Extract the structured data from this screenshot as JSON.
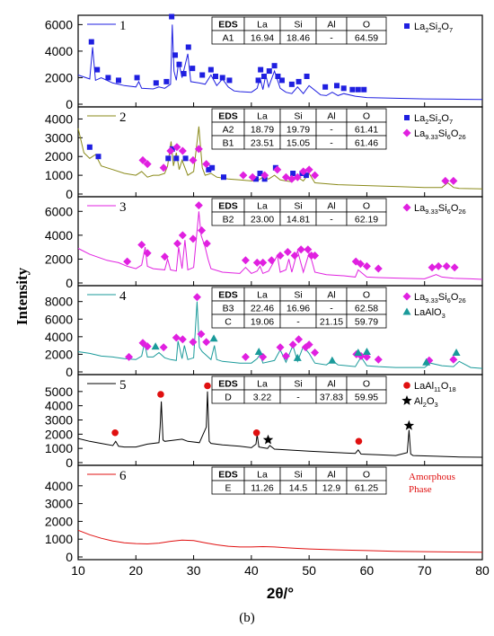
{
  "figure": {
    "caption": "(b)",
    "ylabel": "Intensity",
    "xlabel": "2θ/°",
    "x_ticks": [
      "10",
      "20",
      "30",
      "40",
      "50",
      "60",
      "70",
      "80"
    ],
    "xlim": [
      10,
      80
    ]
  },
  "legend_phases": {
    "La2Si2O7": {
      "base": "La",
      "sub1": "2",
      "mid": "Si",
      "sub2": "2",
      "end": "O",
      "sub3": "7",
      "marker": "square",
      "color": "#1f1fe0"
    },
    "La933Si6O26": {
      "base": "La",
      "sub1": "9.33",
      "mid": "Si",
      "sub2": "6",
      "end": "O",
      "sub3": "26",
      "marker": "diamond",
      "color": "#e020e0"
    },
    "LaAlO3": {
      "text": "LaAlO",
      "sub": "3",
      "marker": "triangle",
      "color": "#1a9a9a"
    },
    "LaAl11O18": {
      "base": "LaAl",
      "sub1": "11",
      "mid": "O",
      "sub2": "18",
      "marker": "circle",
      "color": "#e01010"
    },
    "Al2O3": {
      "base": "Al",
      "sub1": "2",
      "mid": "O",
      "sub2": "3",
      "marker": "star",
      "color": "#000000"
    },
    "amorphous": {
      "line1": "Amorphous",
      "line2": "Phase",
      "color": "#e01010"
    }
  },
  "eds_header": [
    "EDS",
    "La",
    "Si",
    "Al",
    "O"
  ],
  "chart_data": [
    {
      "type": "line",
      "panel": "1",
      "line_color": "#1f1fe0",
      "ylim": [
        0,
        6500
      ],
      "yticks": [
        "0",
        "2000",
        "4000",
        "6000"
      ],
      "eds_rows": [
        [
          "A1",
          "16.94",
          "18.46",
          "-",
          "64.59"
        ]
      ],
      "legend": [
        "La2Si2O7"
      ],
      "x": [
        10,
        12,
        12.5,
        13,
        14,
        16,
        17,
        18,
        20,
        20.5,
        21,
        23,
        24,
        25,
        26.0,
        26.3,
        26.6,
        27,
        27.4,
        28,
        29,
        29.5,
        31,
        32,
        33,
        34,
        35,
        36,
        37,
        38,
        40,
        41,
        41.5,
        42,
        42.5,
        43,
        44,
        45,
        46,
        47,
        48,
        49,
        50,
        52,
        53,
        54,
        55,
        56,
        58,
        60,
        65,
        70,
        75,
        80
      ],
      "y": [
        2200,
        1900,
        4300,
        1800,
        2000,
        1600,
        1500,
        1400,
        1300,
        1700,
        1200,
        1150,
        1300,
        1200,
        1500,
        6000,
        2500,
        1800,
        3200,
        2000,
        3800,
        1700,
        1600,
        1500,
        2200,
        1400,
        1900,
        1300,
        1000,
        950,
        900,
        1200,
        2000,
        1100,
        2200,
        1300,
        2500,
        1200,
        900,
        800,
        1300,
        800,
        1400,
        700,
        650,
        900,
        650,
        800,
        600,
        500,
        450,
        400,
        380,
        350
      ],
      "markers": [
        {
          "phase": "La2Si2O7",
          "x": [
            12.3,
            13.3,
            15.2,
            17.0,
            20.2,
            23.5,
            25.3,
            26.2,
            26.8,
            27.5,
            28.3,
            29.1,
            29.8,
            31.5,
            33.0,
            33.8,
            35.0,
            36.2,
            41.2,
            41.6,
            42.2,
            43.1,
            44.0,
            44.6,
            45.3,
            47.0,
            48.2,
            49.6,
            52.8,
            54.8,
            56.0,
            57.5,
            58.5,
            59.5
          ],
          "y": [
            4700,
            2600,
            2000,
            1800,
            2000,
            1600,
            1700,
            6600,
            3700,
            3000,
            2300,
            4300,
            2700,
            2200,
            2600,
            2100,
            2000,
            1800,
            1800,
            2600,
            2100,
            2500,
            2900,
            2100,
            1800,
            1500,
            1700,
            2100,
            1300,
            1400,
            1200,
            1100,
            1100,
            1100
          ]
        }
      ]
    },
    {
      "type": "line",
      "panel": "2",
      "line_color": "#8a8a1a",
      "ylim": [
        0,
        4500
      ],
      "yticks": [
        "0",
        "1000",
        "2000",
        "3000",
        "4000"
      ],
      "eds_rows": [
        [
          "A2",
          "18.79",
          "19.79",
          "-",
          "61.41"
        ],
        [
          "B1",
          "23.51",
          "15.05",
          "-",
          "61.46"
        ]
      ],
      "legend": [
        "La2Si2O7",
        "La933Si6O26"
      ],
      "x": [
        10,
        11,
        12,
        13,
        14,
        16,
        18,
        20,
        21,
        22,
        23,
        24,
        25,
        25.5,
        26.1,
        26.5,
        27,
        27.5,
        28,
        29,
        30,
        30.9,
        31.5,
        32,
        33,
        34,
        36,
        38,
        40,
        41,
        42,
        43,
        44,
        45,
        46,
        47,
        48,
        49,
        50,
        51,
        55,
        60,
        65,
        70,
        73,
        74,
        75,
        76,
        80
      ],
      "y": [
        3500,
        2200,
        1900,
        2100,
        1500,
        1300,
        1100,
        1000,
        1200,
        900,
        1000,
        1000,
        1100,
        1500,
        2800,
        1500,
        2200,
        1300,
        1800,
        1000,
        1200,
        3600,
        1400,
        1000,
        1100,
        900,
        800,
        750,
        700,
        700,
        900,
        800,
        1000,
        750,
        700,
        650,
        900,
        700,
        1100,
        600,
        500,
        450,
        400,
        350,
        350,
        600,
        350,
        300,
        280
      ],
      "markers": [
        {
          "phase": "La2Si2O7",
          "x": [
            12.0,
            13.5,
            25.6,
            26.3,
            27.0,
            28.6,
            32.6,
            33.2,
            35.2,
            40.8,
            41.5,
            42.3,
            44.2,
            47.2,
            48.8,
            49.5
          ],
          "y": [
            2500,
            2000,
            1900,
            2400,
            1900,
            1900,
            1300,
            1400,
            900,
            800,
            1100,
            800,
            1400,
            1100,
            1100,
            1000
          ]
        },
        {
          "phase": "La933Si6O26",
          "x": [
            21.2,
            22.0,
            24.8,
            26.0,
            27.1,
            28.1,
            29.9,
            30.9,
            32.2,
            38.6,
            40.2,
            42.3,
            44.5,
            46.0,
            47.0,
            48.0,
            49.0,
            50.0,
            51.0,
            73.6,
            75.0
          ],
          "y": [
            1800,
            1600,
            1400,
            2300,
            2500,
            2300,
            1800,
            2400,
            1600,
            1000,
            900,
            1000,
            1300,
            900,
            800,
            900,
            1200,
            1300,
            1000,
            700,
            700
          ]
        }
      ]
    },
    {
      "type": "line",
      "panel": "3",
      "line_color": "#e020e0",
      "ylim": [
        0,
        7000
      ],
      "yticks": [
        "0",
        "2000",
        "4000",
        "6000"
      ],
      "eds_rows": [
        [
          "B2",
          "23.00",
          "14.81",
          "-",
          "62.19"
        ]
      ],
      "legend": [
        "La933Si6O26"
      ],
      "x": [
        10,
        12,
        15,
        17,
        18.5,
        20,
        21,
        21.6,
        22,
        23,
        25,
        25.5,
        26,
        27,
        27.4,
        28,
        28.5,
        29,
        30,
        30.9,
        31.3,
        32,
        32.5,
        33,
        35,
        38,
        39,
        40,
        41,
        41.5,
        42,
        43,
        44.5,
        45,
        46,
        46.5,
        47,
        48,
        49,
        50,
        50.5,
        51,
        53,
        56,
        58,
        58.5,
        60,
        62,
        66,
        70,
        72,
        73,
        75,
        78,
        80
      ],
      "y": [
        2900,
        2400,
        1900,
        1700,
        1400,
        1200,
        1500,
        3000,
        1400,
        1200,
        1100,
        2000,
        1100,
        1000,
        3000,
        1200,
        3600,
        1100,
        1300,
        6000,
        4000,
        3000,
        2000,
        1200,
        900,
        800,
        1300,
        800,
        1000,
        1400,
        800,
        1000,
        2300,
        900,
        1100,
        2000,
        900,
        2700,
        900,
        2500,
        1800,
        900,
        700,
        600,
        500,
        1100,
        500,
        450,
        400,
        350,
        700,
        500,
        400,
        350,
        300
      ],
      "markers": [
        {
          "phase": "La933Si6O26",
          "x": [
            18.5,
            21.0,
            22.0,
            25.0,
            27.2,
            28.1,
            29.9,
            30.9,
            31.4,
            32.3,
            39.0,
            41.0,
            42.0,
            43.5,
            45.0,
            46.3,
            47.5,
            48.6,
            49.8,
            50.4,
            51.0,
            58.1,
            58.9,
            60.0,
            62.0,
            71.3,
            72.4,
            73.8,
            75.2
          ],
          "y": [
            1800,
            3200,
            2500,
            2200,
            3300,
            4000,
            3700,
            6500,
            4400,
            3300,
            1900,
            1700,
            1700,
            1900,
            2300,
            2600,
            2300,
            2800,
            2800,
            2300,
            2300,
            1800,
            1600,
            1400,
            1200,
            1300,
            1400,
            1400,
            1300
          ]
        }
      ]
    },
    {
      "type": "line",
      "panel": "4",
      "line_color": "#1a9a9a",
      "ylim": [
        0,
        9500
      ],
      "yticks": [
        "0",
        "2000",
        "4000",
        "6000",
        "8000"
      ],
      "eds_rows": [
        [
          "B3",
          "22.46",
          "16.96",
          "-",
          "62.58"
        ],
        [
          "C",
          "19.06",
          "-",
          "21.15",
          "59.79"
        ]
      ],
      "legend": [
        "La933Si6O26",
        "LaAlO3"
      ],
      "x": [
        10,
        12,
        14,
        16,
        18,
        20,
        21,
        21.5,
        22,
        23,
        24,
        25,
        26,
        27,
        27.3,
        28,
        28.4,
        29,
        30,
        30.6,
        31.0,
        31.5,
        32,
        33,
        33.6,
        34,
        35,
        38,
        40,
        41,
        41.5,
        42,
        44,
        45,
        46,
        47.2,
        48,
        49,
        50,
        51,
        53,
        54,
        55,
        58,
        59,
        60,
        62,
        65,
        70,
        71,
        73,
        75,
        76,
        78,
        80
      ],
      "y": [
        2300,
        2100,
        1800,
        1700,
        1500,
        1400,
        1800,
        3300,
        1700,
        1700,
        2200,
        1600,
        1400,
        1300,
        3500,
        1500,
        3000,
        1400,
        1600,
        8000,
        2800,
        2300,
        2000,
        1400,
        3000,
        1400,
        1200,
        1000,
        1000,
        1500,
        2000,
        1000,
        1300,
        2500,
        1100,
        3000,
        1200,
        2900,
        2100,
        1000,
        800,
        1300,
        800,
        600,
        1700,
        700,
        600,
        500,
        500,
        1000,
        700,
        600,
        1200,
        500,
        400
      ],
      "markers": [
        {
          "phase": "La933Si6O26",
          "x": [
            18.8,
            21.2,
            22.0,
            24.8,
            27.0,
            28.1,
            29.9,
            30.6,
            31.3,
            32.2,
            39.0,
            42.0,
            45.0,
            46.0,
            47.2,
            48.2,
            49.4,
            50.0,
            51.0,
            58.2,
            59.0,
            60.0,
            62.0,
            70.8,
            75.0
          ],
          "y": [
            1700,
            3300,
            2900,
            2800,
            3900,
            3700,
            3400,
            8500,
            4300,
            3400,
            1700,
            1700,
            2800,
            1800,
            3100,
            3700,
            2800,
            3100,
            2200,
            2000,
            1800,
            1700,
            1400,
            1300,
            1400
          ]
        },
        {
          "phase": "LaAlO3",
          "x": [
            23.4,
            33.5,
            41.3,
            48.0,
            54.0,
            58.5,
            60.0,
            70.3,
            75.5
          ],
          "y": [
            2900,
            3800,
            2300,
            1600,
            1300,
            2200,
            2300,
            1100,
            2200
          ]
        }
      ]
    },
    {
      "type": "line",
      "panel": "5",
      "line_color": "#000000",
      "ylim": [
        0,
        6000
      ],
      "yticks": [
        "0",
        "1000",
        "2000",
        "3000",
        "4000",
        "5000"
      ],
      "eds_rows": [
        [
          "D",
          "3.22",
          "-",
          "37.83",
          "59.95"
        ]
      ],
      "legend": [
        "LaAl11O18",
        "Al2O3"
      ],
      "x": [
        10,
        12,
        14,
        16,
        16.5,
        17,
        18,
        20,
        22,
        24,
        24.2,
        24.4,
        24.7,
        25,
        26,
        28,
        29,
        31,
        32.2,
        32.4,
        32.7,
        33,
        35,
        38,
        40,
        40.8,
        41.0,
        41.3,
        42,
        42.8,
        43.2,
        44,
        46,
        50,
        55,
        58,
        58.5,
        59,
        62,
        65,
        67.0,
        67.3,
        67.6,
        68,
        72,
        76,
        80
      ],
      "y": [
        1700,
        1500,
        1350,
        1200,
        1500,
        1150,
        1100,
        1100,
        1300,
        1400,
        2500,
        4300,
        1600,
        1500,
        1550,
        1650,
        1500,
        1400,
        2500,
        5000,
        1500,
        1350,
        1250,
        1150,
        1050,
        1300,
        2000,
        1100,
        1050,
        1000,
        1200,
        950,
        900,
        800,
        700,
        650,
        900,
        600,
        550,
        500,
        700,
        2300,
        600,
        500,
        450,
        400,
        380
      ],
      "markers": [
        {
          "phase": "LaAl11O18",
          "x": [
            16.4,
            24.3,
            32.4,
            40.9,
            58.6
          ],
          "y": [
            2100,
            4800,
            5400,
            2100,
            1500
          ]
        },
        {
          "phase": "Al2O3",
          "x": [
            42.9,
            67.3
          ],
          "y": [
            1600,
            2600
          ]
        }
      ]
    },
    {
      "type": "line",
      "panel": "6",
      "line_color": "#e01010",
      "ylim": [
        0,
        5000
      ],
      "yticks": [
        "0",
        "1000",
        "2000",
        "3000",
        "4000"
      ],
      "eds_rows": [
        [
          "E",
          "11.26",
          "14.5",
          "12.9",
          "61.25"
        ]
      ],
      "legend": [
        "amorphous"
      ],
      "x": [
        10,
        12,
        14,
        16,
        18,
        20,
        22,
        24,
        26,
        28,
        30,
        32,
        34,
        36,
        38,
        40,
        42,
        44,
        46,
        48,
        50,
        55,
        60,
        65,
        70,
        75,
        80
      ],
      "y": [
        1500,
        1250,
        1050,
        900,
        800,
        750,
        730,
        780,
        880,
        950,
        920,
        800,
        680,
        600,
        560,
        560,
        580,
        560,
        520,
        480,
        450,
        400,
        360,
        320,
        300,
        280,
        270
      ],
      "markers": []
    }
  ]
}
